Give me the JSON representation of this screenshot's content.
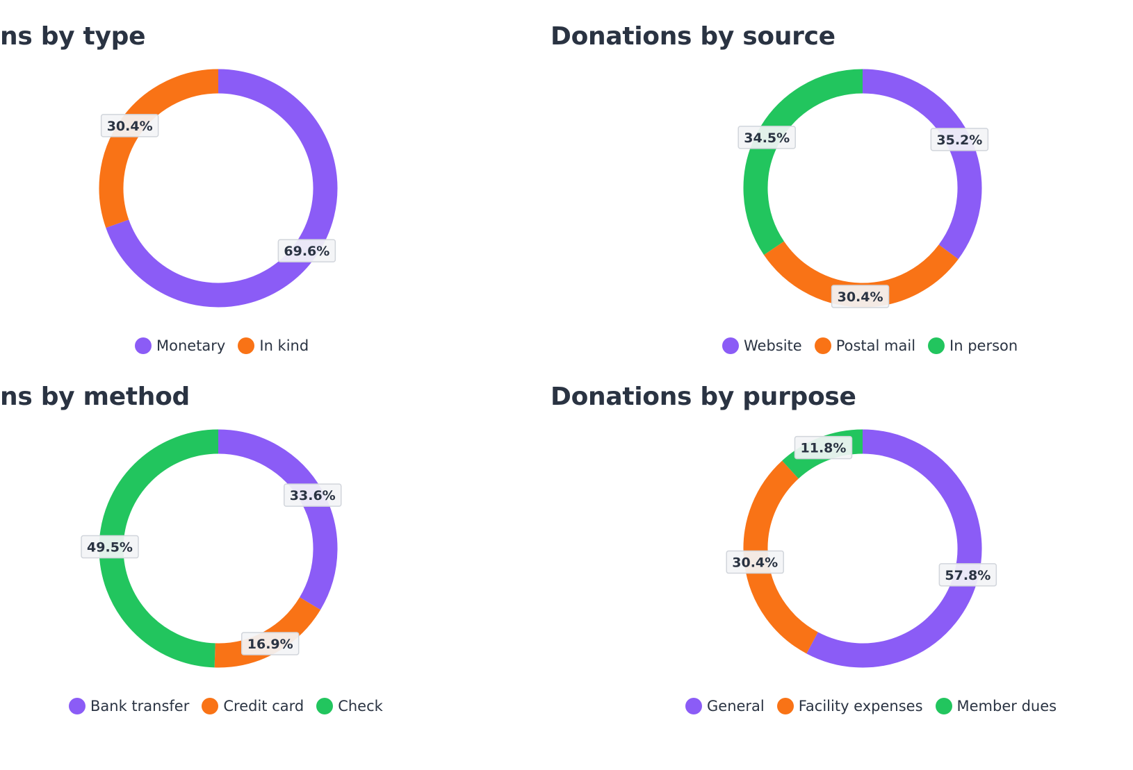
{
  "colors": {
    "purple": "#8b5cf6",
    "orange": "#f97316",
    "green": "#22c55e",
    "title": "#2a3342",
    "label_bg": "#f3f4f6",
    "label_border": "#d1d5db"
  },
  "chart_data": [
    {
      "type": "pie",
      "title": "ns by type",
      "hole": true,
      "legend_position": "bottom",
      "categories": [
        "Monetary",
        "In kind"
      ],
      "values": [
        69.6,
        30.4
      ],
      "labels": [
        "69.6%",
        "30.4%"
      ],
      "colors": [
        "#8b5cf6",
        "#f97316"
      ]
    },
    {
      "type": "pie",
      "title": "Donations by source",
      "hole": true,
      "legend_position": "bottom",
      "categories": [
        "Website",
        "Postal mail",
        "In person"
      ],
      "values": [
        35.2,
        30.4,
        34.5
      ],
      "labels": [
        "35.2%",
        "30.4%",
        "34.5%"
      ],
      "colors": [
        "#8b5cf6",
        "#f97316",
        "#22c55e"
      ]
    },
    {
      "type": "pie",
      "title": "ns by method",
      "hole": true,
      "legend_position": "bottom",
      "categories": [
        "Bank transfer",
        "Credit card",
        "Check"
      ],
      "values": [
        33.6,
        16.9,
        49.5
      ],
      "labels": [
        "33.6%",
        "16.9%",
        "49.5%"
      ],
      "colors": [
        "#8b5cf6",
        "#f97316",
        "#22c55e"
      ]
    },
    {
      "type": "pie",
      "title": "Donations by purpose",
      "hole": true,
      "legend_position": "bottom",
      "categories": [
        "General",
        "Facility expenses",
        "Member dues"
      ],
      "values": [
        57.8,
        30.4,
        11.8
      ],
      "labels": [
        "57.8%",
        "30.4%",
        "11.8%"
      ],
      "colors": [
        "#8b5cf6",
        "#f97316",
        "#22c55e"
      ]
    }
  ]
}
